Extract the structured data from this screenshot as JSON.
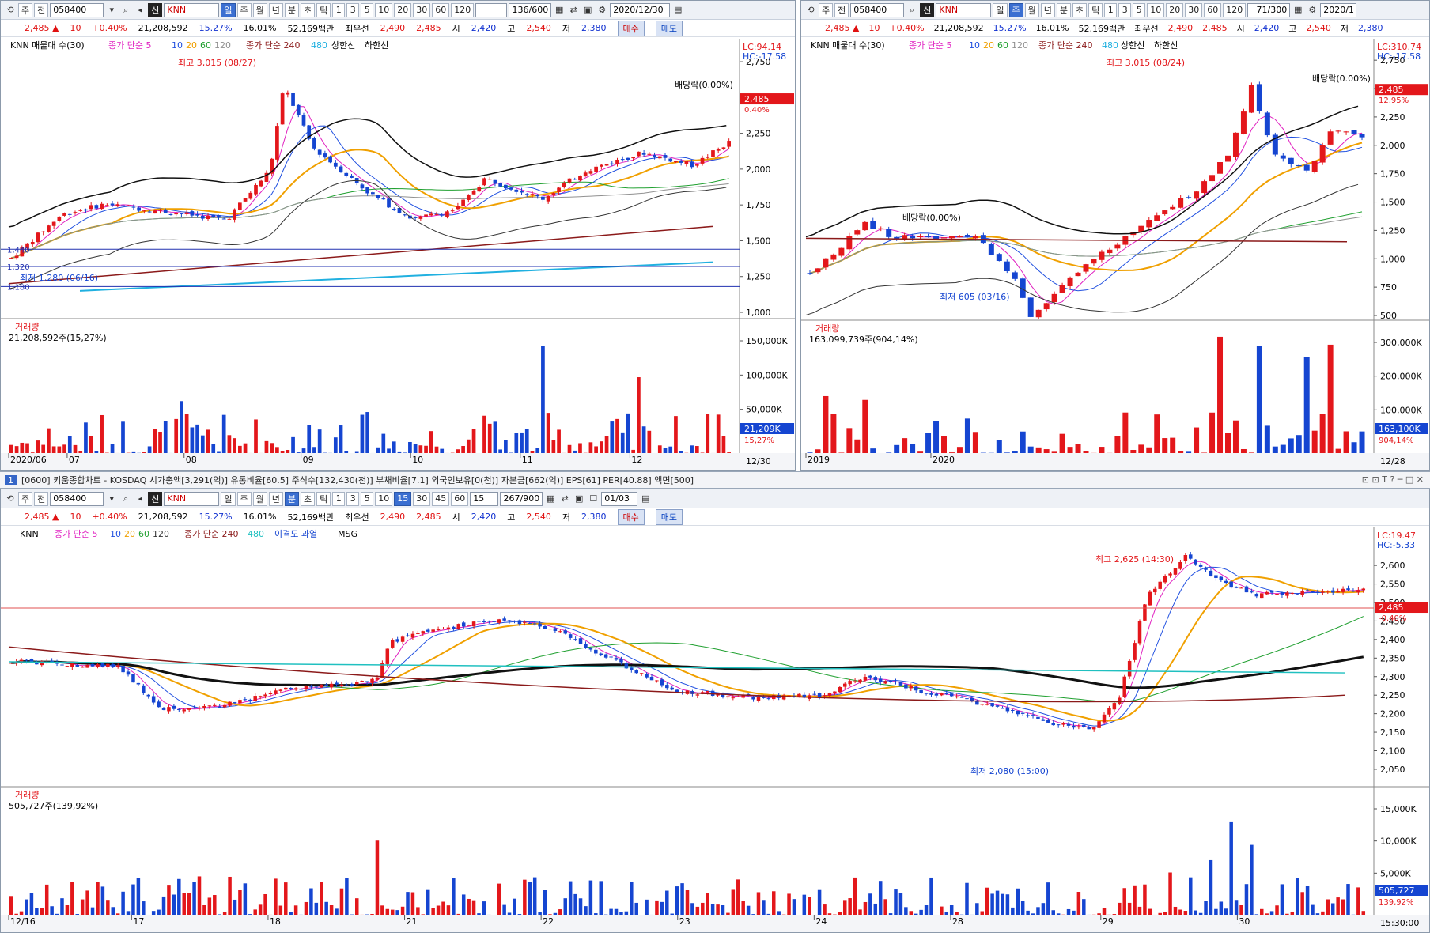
{
  "quote": {
    "price": "2,485 ▲",
    "change": "10",
    "change_pct": "+0.40%",
    "volume": "21,208,592",
    "turnover": "15.27%",
    "turnover2": "16.01%",
    "amount": "52,169백만",
    "best_ask_label": "최우선",
    "best_ask": "2,490",
    "best_bid": "2,485",
    "open_label": "시",
    "open": "2,420",
    "high_label": "고",
    "high": "2,540",
    "low_label": "저",
    "low": "2,380",
    "buy_label": "매수",
    "sell_label": "매도"
  },
  "toolbar": {
    "type_label": "주",
    "all_label": "전",
    "code": "058400",
    "sin_label": "신",
    "name": "KNN",
    "periods": [
      "일",
      "주",
      "월",
      "년",
      "분",
      "초",
      "틱"
    ],
    "nums": [
      "1",
      "3",
      "5",
      "10",
      "20",
      "30",
      "60",
      "120"
    ],
    "nums_bottom": [
      "1",
      "3",
      "5",
      "10",
      "15",
      "30",
      "45",
      "60"
    ],
    "min_select": "15"
  },
  "panel1": {
    "count": "136/600",
    "date": "2020/12/30",
    "legend_title": "KNN 매물대 수(30)",
    "legend_ma": "종가 단순 5",
    "legend_ma_periods": [
      "10",
      "20",
      "60",
      "120"
    ],
    "legend_ma2": "종가 단순 240",
    "legend_ma2_p": "480",
    "legend_band": "상한선",
    "legend_band2": "하한선",
    "annot_high": "최고 3,015 (08/27)",
    "annot_low": "최저 1,280 (06/16)",
    "annot_div": "배당락(0.00%)",
    "lc": "LC:94.14",
    "hc": "HC:-17.58",
    "price_tag": "2,485",
    "price_pct": "0.40%",
    "yticks": [
      "2,750",
      "2,500",
      "2,250",
      "2,000",
      "1,750",
      "1,500",
      "1,250",
      "1,000"
    ],
    "left_labels": [
      "1,440",
      "1,320",
      "1,180"
    ],
    "vol_title": "거래량",
    "vol_value": "21,208,592주(15,27%)",
    "vticks": [
      "150,000K",
      "100,000K",
      "50,000K"
    ],
    "vol_tag": "21,209K",
    "vol_tag2": "15,27%",
    "xticks": [
      "2020/06",
      "07",
      "08",
      "09",
      "10",
      "11",
      "12"
    ],
    "x_end": "12/30"
  },
  "panel2": {
    "count": "71/300",
    "date": "2020/1",
    "legend_title": "KNN 매물대 수(30)",
    "annot_high": "최고 3,015 (08/24)",
    "annot_low": "최저 605 (03/16)",
    "annot_div1": "배당락(0.00%)",
    "annot_div2": "배당락(0.00%)",
    "lc": "LC:310.74",
    "hc": "HC:-17.58",
    "price_tag": "2,485",
    "price_pct": "12.95%",
    "yticks": [
      "2,750",
      "2,500",
      "2,250",
      "2,000",
      "1,750",
      "1,500",
      "1,250",
      "1,000",
      "750",
      "500"
    ],
    "vol_title": "거래량",
    "vol_value": "163,099,739주(904,14%)",
    "vticks": [
      "300,000K",
      "200,000K",
      "100,000K"
    ],
    "vol_tag": "163,100K",
    "vol_tag2": "904,14%",
    "xticks": [
      "2019",
      "2020"
    ],
    "x_end": "12/28"
  },
  "titlebar": {
    "num": "1",
    "text": "[0600] 키움종합차트 - KOSDAQ 시가총액[3,291(억)] 유통비율[60.5] 주식수[132,430(천)] 부채비율[7.1] 외국인보유[0(천)] 자본금[662(억)] EPS[61] PER[40.88] 액면[500]",
    "icons": "⊡ ⊡ T ? ─ □ ✕"
  },
  "panel3": {
    "count": "267/900",
    "date": "01/03",
    "legend_name": "KNN",
    "legend_ma": "종가 단순 5",
    "legend_ma_periods": [
      "10",
      "20",
      "60",
      "120"
    ],
    "legend_ma2": "종가 단순 240",
    "legend_ma2_p": "480",
    "legend_extra": "이격도 과열",
    "legend_msg": "MSG",
    "annot_high": "최고 2,625 (14:30)",
    "annot_low": "최저 2,080 (15:00)",
    "lc": "LC:19.47",
    "hc": "HC:-5.33",
    "price_tag": "2,485",
    "price_pct": "-0.40%",
    "yticks": [
      "2,600",
      "2,550",
      "2,500",
      "2,450",
      "2,400",
      "2,350",
      "2,300",
      "2,250",
      "2,200",
      "2,150",
      "2,100",
      "2,050"
    ],
    "vol_title": "거래량",
    "vol_value": "505,727주(139,92%)",
    "vticks": [
      "15,000K",
      "10,000K",
      "5,000K"
    ],
    "vol_tag": "505,727",
    "vol_tag2": "139,92%",
    "xticks": [
      "12/16",
      "17",
      "18",
      "21",
      "22",
      "23",
      "24",
      "28",
      "29",
      "30"
    ],
    "x_end": "15:30:00"
  },
  "colors": {
    "up": "#e3171b",
    "down": "#1545d1",
    "ma5": "#e020c0",
    "ma10": "#2050e0",
    "ma20": "#f0a000",
    "ma60": "#20a030",
    "ma120": "#909090",
    "ma240": "#8b1a1a",
    "ma480": "#20b0e0"
  }
}
